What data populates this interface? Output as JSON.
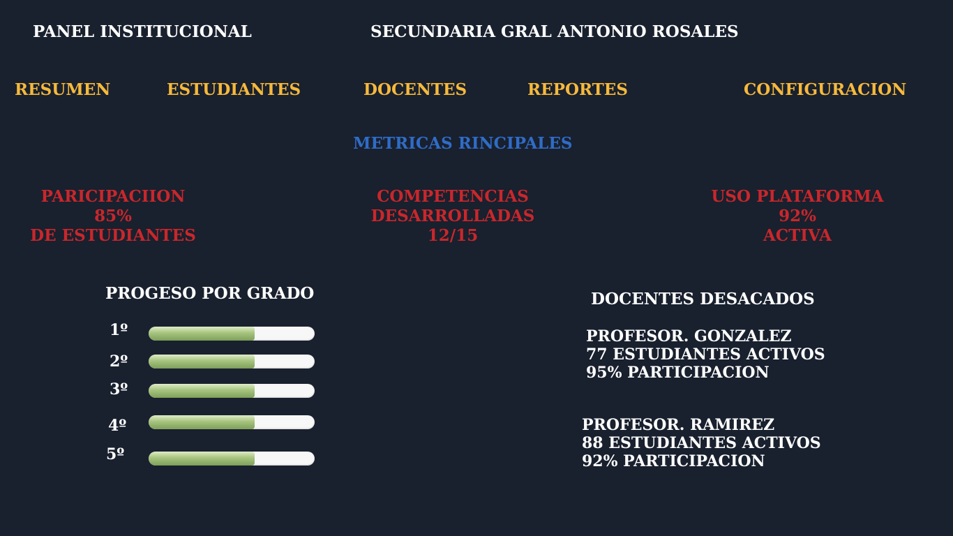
{
  "header": {
    "title": "PANEL INSTITUCIONAL",
    "school": "SECUNDARIA GRAL ANTONIO ROSALES"
  },
  "nav": {
    "items": [
      {
        "label": "RESUMEN"
      },
      {
        "label": "ESTUDIANTES"
      },
      {
        "label": "DOCENTES"
      },
      {
        "label": "REPORTES"
      },
      {
        "label": "CONFIGURACION"
      }
    ]
  },
  "metrics": {
    "section_title": "METRICAS RINCIPALES",
    "cards": [
      {
        "line1": "PARICIPACIION",
        "line2": "85%",
        "line3": "DE ESTUDIANTES"
      },
      {
        "line1": "COMPETENCIAS",
        "line2": "DESARROLLADAS",
        "line3": "12/15"
      },
      {
        "line1": "USO PLATAFORMA",
        "line2": "92%",
        "line3": "ACTIVA"
      }
    ]
  },
  "progress": {
    "title": "PROGESO POR GRADO",
    "grades": [
      {
        "label": "1º",
        "fraction": 0.64
      },
      {
        "label": "2º",
        "fraction": 0.64
      },
      {
        "label": "3º",
        "fraction": 0.64
      },
      {
        "label": "4º",
        "fraction": 0.64
      },
      {
        "label": "5º",
        "fraction": 0.64
      }
    ]
  },
  "teachers": {
    "title": "DOCENTES DESACADOS",
    "list": [
      {
        "name": "PROFESOR. GONZALEZ",
        "students": "77 ESTUDIANTES ACTIVOS",
        "participation": "95% PARTICIPACION"
      },
      {
        "name": "PROFESOR. RAMIREZ",
        "students": "88 ESTUDIANTES ACTIVOS",
        "participation": "92% PARTICIPACION"
      }
    ]
  },
  "colors": {
    "background": "#19202e",
    "nav": "#f6b93b",
    "metric": "#c9272b",
    "section_title": "#2f6cc7",
    "progress_fill": "#a6c47e"
  }
}
